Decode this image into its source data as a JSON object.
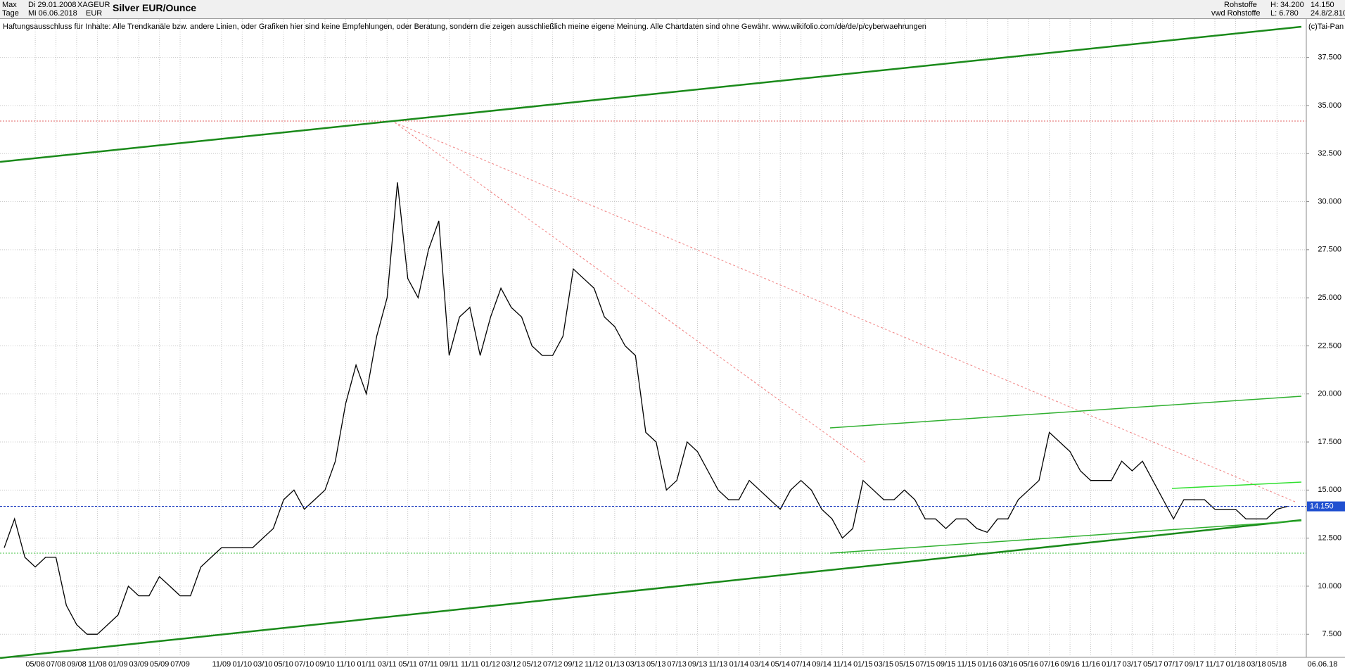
{
  "header": {
    "period": "Max",
    "interval": "Tage",
    "date_from": "Di 29.01.2008",
    "date_to": "Mi 06.06.2018",
    "symbol": "XAGEUR",
    "currency": "EUR",
    "title": "Silver EUR/Ounce",
    "group": "Rohstoffe",
    "source": "vwd Rohstoffe",
    "high": "H: 34.200",
    "low": "L: 6.780",
    "last": "14.150",
    "change": "24.8/2.810",
    "copyright": "(c)Tai-Pan"
  },
  "disclaimer": "Haftungsausschluss für Inhalte: Alle Trendkanäle bzw. andere Linien, oder Grafiken hier sind keine Empfehlungen, oder Beratung, sondern die zeigen ausschließlich meine eigene Meinung. Alle Chartdaten sind ohne Gewähr.  www.wikifolio.com/de/de/p/cyberwaehrungen",
  "chart_data": {
    "type": "line",
    "x": [
      "02/08",
      "03/08",
      "04/08",
      "05/08",
      "06/08",
      "07/08",
      "08/08",
      "09/08",
      "10/08",
      "11/08",
      "12/08",
      "01/09",
      "02/09",
      "03/09",
      "04/09",
      "05/09",
      "06/09",
      "07/09",
      "08/09",
      "09/09",
      "10/09",
      "11/09",
      "12/09",
      "01/10",
      "02/10",
      "03/10",
      "04/10",
      "05/10",
      "06/10",
      "07/10",
      "08/10",
      "09/10",
      "10/10",
      "11/10",
      "12/10",
      "01/11",
      "02/11",
      "03/11",
      "04/11",
      "05/11",
      "06/11",
      "07/11",
      "08/11",
      "09/11",
      "10/11",
      "11/11",
      "12/11",
      "01/12",
      "02/12",
      "03/12",
      "04/12",
      "05/12",
      "06/12",
      "07/12",
      "08/12",
      "09/12",
      "10/12",
      "11/12",
      "12/12",
      "01/13",
      "02/13",
      "03/13",
      "04/13",
      "05/13",
      "06/13",
      "07/13",
      "08/13",
      "09/13",
      "10/13",
      "11/13",
      "12/13",
      "01/14",
      "02/14",
      "03/14",
      "04/14",
      "05/14",
      "06/14",
      "07/14",
      "08/14",
      "09/14",
      "10/14",
      "11/14",
      "12/14",
      "01/15",
      "02/15",
      "03/15",
      "04/15",
      "05/15",
      "06/15",
      "07/15",
      "08/15",
      "09/15",
      "10/15",
      "11/15",
      "12/15",
      "01/16",
      "02/16",
      "03/16",
      "04/16",
      "05/16",
      "06/16",
      "07/16",
      "08/16",
      "09/16",
      "10/16",
      "11/16",
      "12/16",
      "01/17",
      "02/17",
      "03/17",
      "04/17",
      "05/17",
      "06/17",
      "07/17",
      "08/17",
      "09/17",
      "10/17",
      "11/17",
      "12/17",
      "01/18",
      "02/18",
      "03/18",
      "04/18",
      "05/18",
      "06/18"
    ],
    "series": [
      {
        "name": "Silver EUR/Ounce",
        "color": "#000000",
        "values": [
          12,
          13.5,
          11.5,
          11,
          11.5,
          11.5,
          9,
          8,
          7.5,
          7.5,
          8,
          8.5,
          10,
          9.5,
          9.5,
          10.5,
          10,
          9.5,
          9.5,
          11,
          11.5,
          12,
          12,
          12,
          12,
          12.5,
          13,
          14.5,
          15,
          14,
          14.5,
          15,
          16.5,
          19.5,
          21.5,
          20,
          23,
          25,
          31,
          26,
          25,
          27.5,
          29,
          22,
          24,
          24.5,
          22,
          24,
          25.5,
          24.5,
          24,
          22.5,
          22,
          22,
          23,
          26.5,
          26,
          25.5,
          24,
          23.5,
          22.5,
          22,
          18,
          17.5,
          15,
          15.5,
          17.5,
          17,
          16,
          15,
          14.5,
          14.5,
          15.5,
          15,
          14.5,
          14,
          15,
          15.5,
          15,
          14,
          13.5,
          12.5,
          13,
          15.5,
          15,
          14.5,
          14.5,
          15,
          14.5,
          13.5,
          13.5,
          13,
          13.5,
          13.5,
          13,
          12.8,
          13.5,
          13.5,
          14.5,
          15,
          15.5,
          18,
          17.5,
          17,
          16,
          15.5,
          15.5,
          15.5,
          16.5,
          16,
          16.5,
          15.5,
          14.5,
          13.5,
          14.5,
          14.5,
          14.5,
          14,
          14,
          14,
          13.5,
          13.5,
          13.5,
          14,
          14.15
        ]
      }
    ],
    "xticks": [
      "05/08",
      "07/08",
      "09/08",
      "11/08",
      "01/09",
      "03/09",
      "05/09",
      "07/09",
      "11/09",
      "01/10",
      "03/10",
      "05/10",
      "07/10",
      "09/10",
      "11/10",
      "01/11",
      "03/11",
      "05/11",
      "07/11",
      "09/11",
      "11/11",
      "01/12",
      "03/12",
      "05/12",
      "07/12",
      "09/12",
      "11/12",
      "01/13",
      "03/13",
      "05/13",
      "07/13",
      "09/13",
      "11/13",
      "01/14",
      "03/14",
      "05/14",
      "07/14",
      "09/14",
      "11/14",
      "01/15",
      "03/15",
      "05/15",
      "07/15",
      "09/15",
      "11/15",
      "01/16",
      "03/16",
      "05/16",
      "07/16",
      "09/16",
      "11/16",
      "01/17",
      "03/17",
      "05/17",
      "07/17",
      "09/17",
      "11/17",
      "01/18",
      "03/18",
      "05/18"
    ],
    "end_date": "06.06.18",
    "ylim": [
      6.3,
      39.5
    ],
    "yticks": [
      {
        "value": 7.5,
        "label": "7.500"
      },
      {
        "value": 10,
        "label": "10.000"
      },
      {
        "value": 12.5,
        "label": "12.500"
      },
      {
        "value": 15,
        "label": "15.000"
      },
      {
        "value": 17.5,
        "label": "17.500"
      },
      {
        "value": 20,
        "label": "20.000"
      },
      {
        "value": 22.5,
        "label": "22.500"
      },
      {
        "value": 25,
        "label": "25.000"
      },
      {
        "value": 27.5,
        "label": "27.500"
      },
      {
        "value": 30,
        "label": "30.000"
      },
      {
        "value": 32.5,
        "label": "32.500"
      },
      {
        "value": 35,
        "label": "35.000"
      },
      {
        "value": 37.5,
        "label": "37.500"
      }
    ],
    "last_price": {
      "value": 14.15,
      "label": "14.150"
    },
    "grid": true
  }
}
